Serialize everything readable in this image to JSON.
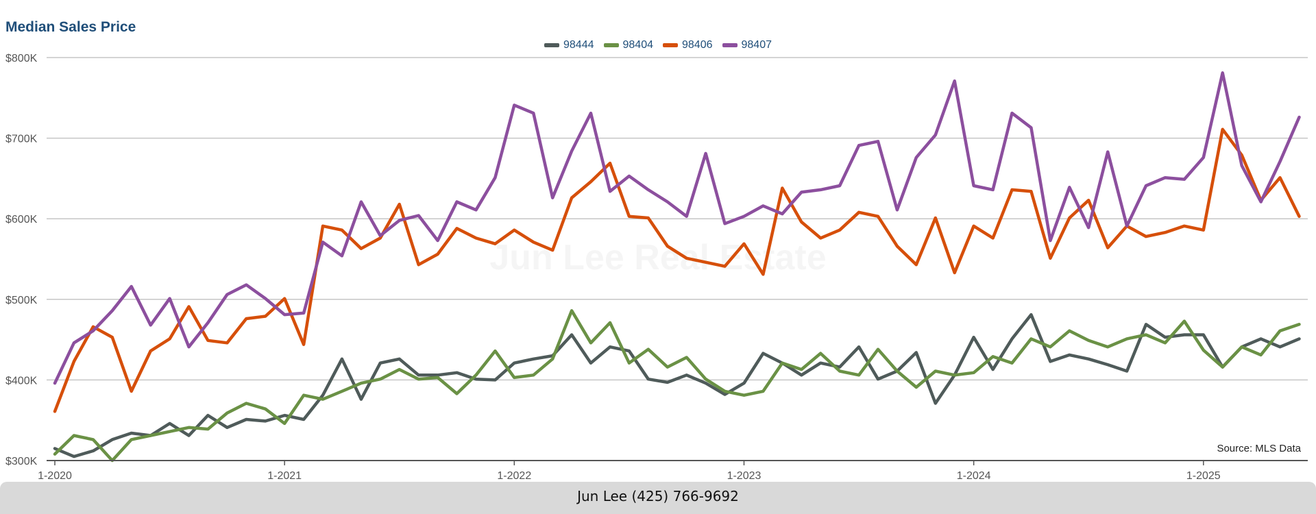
{
  "footer": {
    "contact": "Jun Lee (425) 766-9692"
  },
  "chart_data": {
    "type": "line",
    "title": "Median Sales Price",
    "xlabel": "",
    "ylabel": "",
    "ylim": [
      300000,
      800000
    ],
    "y_ticks": [
      300000,
      400000,
      500000,
      600000,
      700000,
      800000
    ],
    "y_tick_labels": [
      "$300K",
      "$400K",
      "$500K",
      "$600K",
      "$700K",
      "$800K"
    ],
    "x_start": "2020-01",
    "x_ticks": [
      "1-2020",
      "1-2021",
      "1-2022",
      "1-2023",
      "1-2024",
      "1-2025"
    ],
    "grid": true,
    "legend": "top-center",
    "watermark": "Jun Lee Real Estate",
    "source": "Source: MLS Data",
    "series": [
      {
        "name": "98444",
        "color": "#4f5b5a",
        "values": [
          315000,
          305000,
          312000,
          326000,
          334000,
          331000,
          346000,
          331000,
          356000,
          341000,
          351000,
          349000,
          356000,
          351000,
          381000,
          426000,
          376000,
          421000,
          426000,
          406000,
          406000,
          409000,
          401000,
          400000,
          421000,
          426000,
          430000,
          456000,
          421000,
          441000,
          436000,
          401000,
          397000,
          406000,
          396000,
          382000,
          396000,
          433000,
          421000,
          406000,
          421000,
          416000,
          441000,
          401000,
          411000,
          434000,
          371000,
          406000,
          453000,
          413000,
          451000,
          481000,
          423000,
          431000,
          426000,
          419000,
          411000,
          469000,
          453000,
          456000,
          456000,
          416000,
          441000,
          451000,
          441000,
          451000
        ]
      },
      {
        "name": "98404",
        "color": "#6a9145",
        "values": [
          308000,
          331000,
          326000,
          300000,
          326000,
          331000,
          336000,
          341000,
          339000,
          359000,
          371000,
          364000,
          346000,
          381000,
          376000,
          386000,
          396000,
          401000,
          413000,
          401000,
          403000,
          383000,
          406000,
          436000,
          403000,
          406000,
          426000,
          486000,
          446000,
          471000,
          421000,
          438000,
          416000,
          428000,
          401000,
          386000,
          381000,
          386000,
          421000,
          413000,
          433000,
          411000,
          406000,
          438000,
          411000,
          391000,
          411000,
          406000,
          409000,
          429000,
          421000,
          451000,
          441000,
          461000,
          449000,
          441000,
          451000,
          456000,
          446000,
          473000,
          437000,
          416000,
          441000,
          431000,
          461000,
          469000
        ]
      },
      {
        "name": "98406",
        "color": "#d64f0a",
        "values": [
          361000,
          423000,
          466000,
          453000,
          386000,
          436000,
          451000,
          491000,
          449000,
          446000,
          476000,
          479000,
          501000,
          444000,
          591000,
          586000,
          563000,
          576000,
          618000,
          543000,
          556000,
          588000,
          576000,
          569000,
          586000,
          571000,
          561000,
          626000,
          646000,
          669000,
          603000,
          601000,
          566000,
          551000,
          546000,
          541000,
          569000,
          531000,
          638000,
          596000,
          576000,
          586000,
          608000,
          603000,
          566000,
          543000,
          601000,
          533000,
          591000,
          576000,
          636000,
          634000,
          551000,
          601000,
          623000,
          564000,
          591000,
          578000,
          583000,
          591000,
          586000,
          711000,
          679000,
          623000,
          651000,
          603000
        ]
      },
      {
        "name": "98407",
        "color": "#8c4f9e",
        "values": [
          396000,
          446000,
          461000,
          486000,
          516000,
          468000,
          501000,
          441000,
          471000,
          506000,
          518000,
          501000,
          481000,
          483000,
          571000,
          554000,
          621000,
          579000,
          598000,
          604000,
          573000,
          621000,
          611000,
          651000,
          741000,
          731000,
          626000,
          684000,
          731000,
          634000,
          653000,
          636000,
          621000,
          603000,
          681000,
          594000,
          603000,
          616000,
          606000,
          633000,
          636000,
          641000,
          691000,
          696000,
          611000,
          676000,
          704000,
          771000,
          641000,
          636000,
          731000,
          713000,
          573000,
          639000,
          589000,
          683000,
          591000,
          641000,
          651000,
          649000,
          676000,
          781000,
          666000,
          621000,
          671000,
          726000
        ]
      }
    ]
  }
}
